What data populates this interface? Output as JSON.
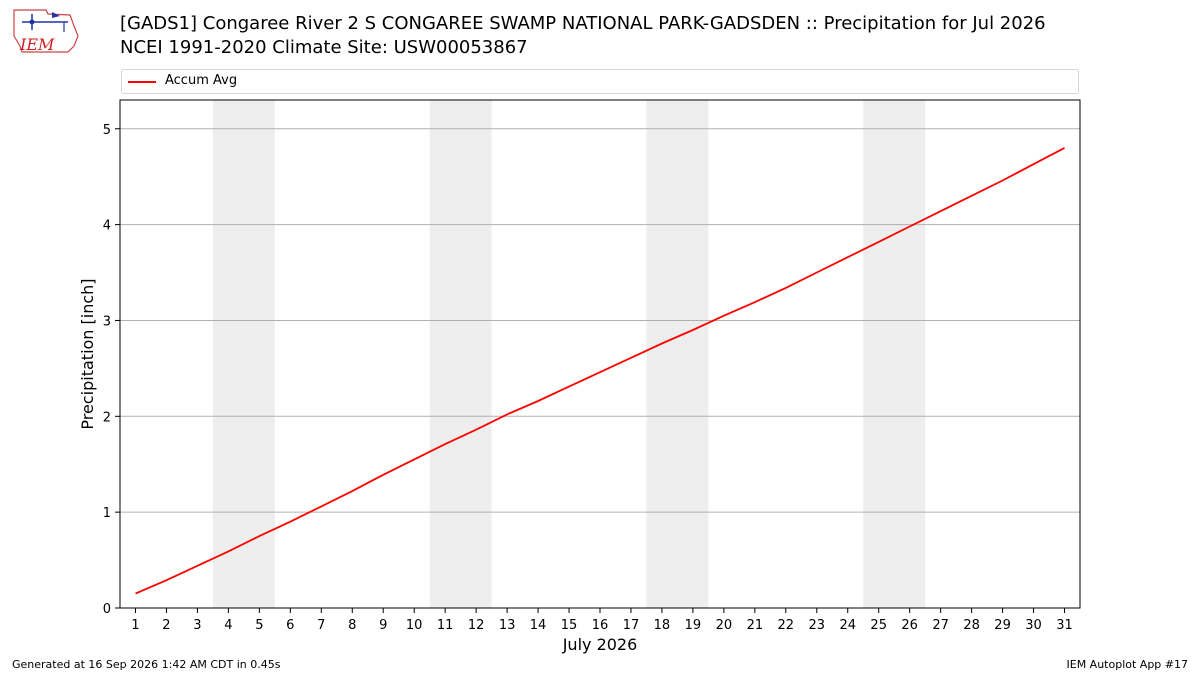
{
  "header": {
    "logo_text": "IEM",
    "title_line1": "[GADS1] Congaree River 2 S CONGAREE SWAMP NATIONAL PARK-GADSDEN :: Precipitation for Jul 2026",
    "title_line2": "NCEI 1991-2020 Climate Site: USW00053867"
  },
  "chart_data": {
    "type": "line",
    "xlabel": "July 2026",
    "ylabel": "Precipitation [inch]",
    "xlim": [
      0.5,
      31.5
    ],
    "ylim": [
      0,
      5.3
    ],
    "x_ticks": [
      1,
      2,
      3,
      4,
      5,
      6,
      7,
      8,
      9,
      10,
      11,
      12,
      13,
      14,
      15,
      16,
      17,
      18,
      19,
      20,
      21,
      22,
      23,
      24,
      25,
      26,
      27,
      28,
      29,
      30,
      31
    ],
    "y_ticks": [
      0,
      1,
      2,
      3,
      4,
      5
    ],
    "grid": "horizontal",
    "legend_position": "top",
    "weekend_bands": [
      [
        3.5,
        5.5
      ],
      [
        10.5,
        12.5
      ],
      [
        17.5,
        19.5
      ],
      [
        24.5,
        26.5
      ]
    ],
    "series": [
      {
        "name": "Accum Avg",
        "color": "#ff0000",
        "x": [
          1,
          2,
          3,
          4,
          5,
          6,
          7,
          8,
          9,
          10,
          11,
          12,
          13,
          14,
          15,
          16,
          17,
          18,
          19,
          20,
          21,
          22,
          23,
          24,
          25,
          26,
          27,
          28,
          29,
          30,
          31
        ],
        "values": [
          0.15,
          0.29,
          0.44,
          0.59,
          0.75,
          0.9,
          1.06,
          1.22,
          1.39,
          1.55,
          1.71,
          1.86,
          2.02,
          2.16,
          2.31,
          2.46,
          2.61,
          2.76,
          2.9,
          3.05,
          3.19,
          3.34,
          3.5,
          3.66,
          3.82,
          3.98,
          4.14,
          4.3,
          4.46,
          4.63,
          4.8
        ]
      }
    ]
  },
  "footer": {
    "generated": "Generated at 16 Sep 2026 1:42 AM CDT in 0.45s",
    "app": "IEM Autoplot App #17"
  }
}
